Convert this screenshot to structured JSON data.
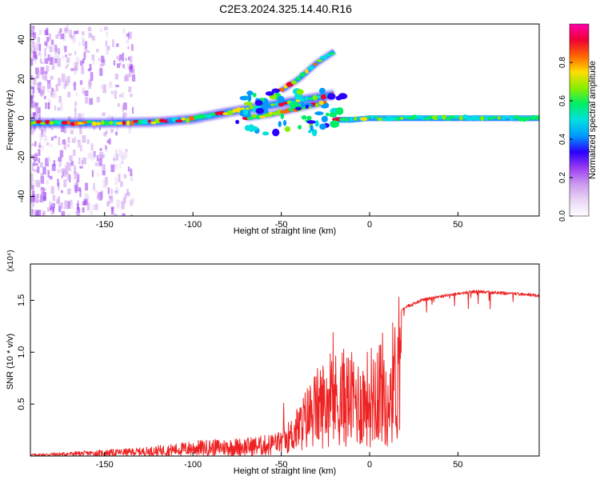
{
  "title": "C2E3.2024.325.14.40.R16",
  "colors": {
    "snr_line": "#ee2222",
    "axis": "#000000",
    "background": "#ffffff",
    "colormap": [
      "#ffffff",
      "#e8d6f4",
      "#cc99ee",
      "#9a3cf0",
      "#2a00ff",
      "#0099ff",
      "#00e0e0",
      "#00ee66",
      "#88ee00",
      "#ffdd00",
      "#ff6600",
      "#ee0033",
      "#ff00aa"
    ]
  },
  "chart_data": [
    {
      "type": "heatmap",
      "xlabel": "Height of straight line (km)",
      "ylabel": "Frequency (Hz)",
      "xlim": [
        -192,
        96
      ],
      "ylim": [
        -50,
        48
      ],
      "xticks": [
        -150,
        -100,
        -50,
        0,
        50
      ],
      "yticks": [
        40,
        20,
        0,
        -20,
        -40
      ],
      "colorbar": {
        "label": "Normalized spectral amplitude",
        "range": [
          0.0,
          1.0
        ],
        "ticks": [
          0.0,
          0.2,
          0.4,
          0.6,
          0.8
        ]
      },
      "ridges": [
        {
          "x": [
            -192,
            -150,
            -120,
            -100,
            -80,
            -60,
            -40,
            -20
          ],
          "y": [
            -2.5,
            -2.5,
            -2,
            -0.5,
            3,
            6,
            9,
            12
          ]
        },
        {
          "x": [
            -50,
            -40,
            -30,
            -20
          ],
          "y": [
            14,
            20,
            28,
            34
          ]
        },
        {
          "x": [
            -70,
            -55,
            -40,
            -25
          ],
          "y": [
            0,
            2,
            5,
            8
          ]
        },
        {
          "x": [
            -20,
            -10,
            0,
            10,
            30,
            60,
            96
          ],
          "y": [
            -1,
            -1,
            0,
            0,
            0,
            0,
            0
          ]
        }
      ]
    },
    {
      "type": "line",
      "xlabel": "Height of straight line (km)",
      "ylabel": "SNR (10 * v/v)",
      "y_multiplier": "(x10⁴)",
      "xlim": [
        -192,
        96
      ],
      "ylim": [
        0,
        1.85
      ],
      "xticks": [
        -150,
        -100,
        -50,
        0,
        50
      ],
      "yticks": [
        0.5,
        1.0,
        1.5
      ],
      "ytick_labels": [
        "0.5",
        "1.0",
        "1.5"
      ],
      "envelope": {
        "x": [
          -192,
          -170,
          -150,
          -130,
          -110,
          -100,
          -90,
          -80,
          -70,
          -60,
          -50,
          -45,
          -40,
          -35,
          -30,
          -25,
          -20,
          -15,
          -10,
          -5,
          0,
          5,
          8,
          10,
          12,
          15,
          20,
          25,
          30,
          40,
          50,
          60,
          70,
          80,
          90,
          96
        ],
        "y": [
          0.02,
          0.04,
          0.06,
          0.08,
          0.12,
          0.15,
          0.16,
          0.17,
          0.18,
          0.2,
          0.25,
          0.35,
          0.5,
          0.7,
          0.85,
          0.95,
          1.0,
          1.05,
          1.0,
          0.95,
          1.05,
          1.25,
          1.2,
          0.6,
          1.3,
          1.35,
          1.45,
          1.48,
          1.52,
          1.55,
          1.58,
          1.6,
          1.59,
          1.58,
          1.57,
          1.56
        ]
      }
    }
  ]
}
